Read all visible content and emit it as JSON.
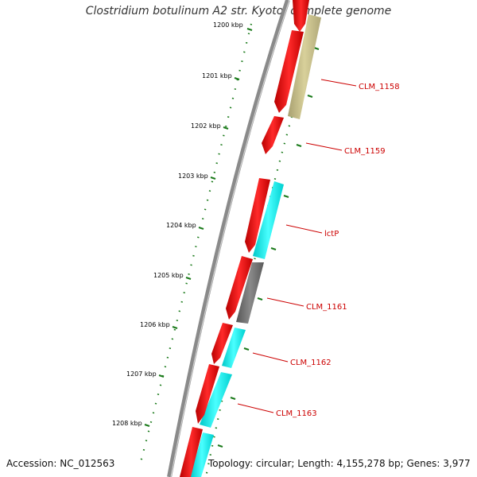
{
  "title": "Clostridium botulinum A2 str. Kyoto, complete genome",
  "footer": {
    "accession": "Accession: NC_012563",
    "summary": "Topology: circular; Length: 4,155,278 bp; Genes: 3,977"
  },
  "ticks": [
    "1200 kbp",
    "1201 kbp",
    "1202 kbp",
    "1203 kbp",
    "1204 kbp",
    "1205 kbp",
    "1206 kbp",
    "1207 kbp",
    "1208 kbp"
  ],
  "gene_labels": [
    "CLM_1158",
    "CLM_1159",
    "lctP",
    "CLM_1161",
    "CLM_1162",
    "CLM_1163"
  ],
  "colors": {
    "forward": "#ff0000",
    "reverse_cyan": "#00ffff",
    "reverse_olive": "#c8c08a",
    "reverse_gray": "#707070",
    "backbone": "#8a8a8a",
    "ticks": "#1a7a1a",
    "label": "#cc0000"
  }
}
